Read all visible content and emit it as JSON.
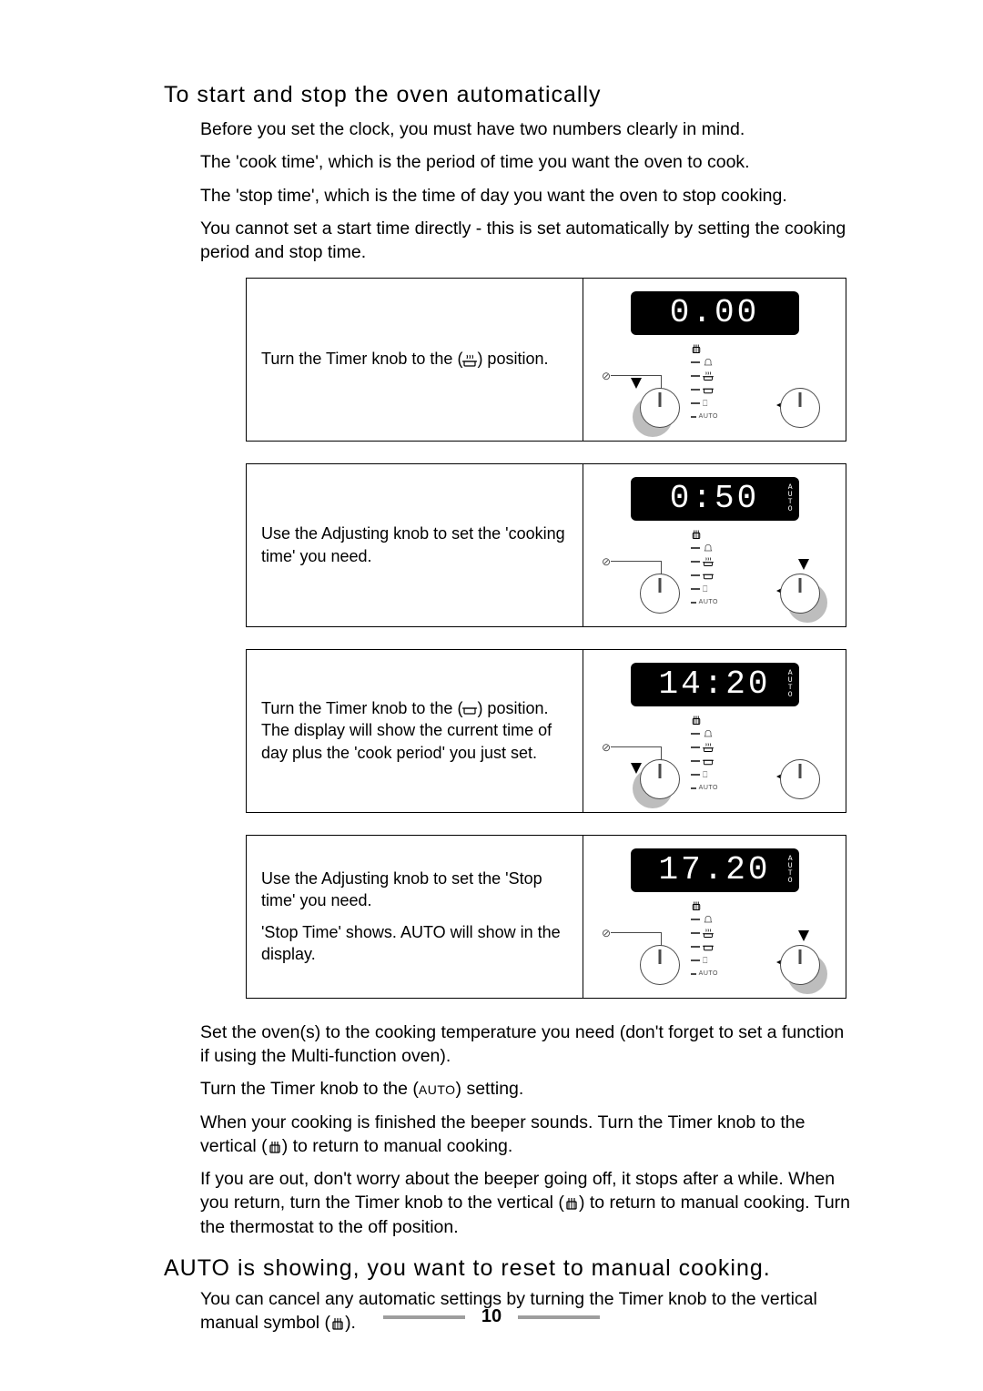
{
  "heading1": "To start and stop the oven automatically",
  "intro": [
    "Before you set the clock, you must have two numbers clearly in mind.",
    "The 'cook time', which is the period of time you want the oven to cook.",
    "The 'stop time', which is the time of day you want the oven to stop cooking.",
    "You cannot set a start time directly - this is set automatically by setting the cooking period and stop time."
  ],
  "steps": [
    {
      "text_pre": "Turn the Timer knob to the (",
      "text_post": ") position.",
      "icon": "pot-steam",
      "display": "0.00",
      "show_auto": false,
      "active_knob": "left",
      "pointer_icon_index": 1
    },
    {
      "text_pre": "Use the Adjusting knob to set the 'cooking time' you need.",
      "text_post": "",
      "icon": "",
      "display": "0:50",
      "show_auto": true,
      "active_knob": "right",
      "pointer_icon_index": null
    },
    {
      "text_pre": "Turn the Timer knob to the (",
      "text_post": ") position. The display will show the current time of day plus the 'cook period' you just set.",
      "icon": "pot-flat",
      "display": "14:20",
      "show_auto": true,
      "active_knob": "left",
      "pointer_icon_index": 2
    },
    {
      "text_pre": "Use the Adjusting knob to set the 'Stop time' you need.",
      "text_post": "",
      "text_extra": "'Stop Time' shows. AUTO will show in the display.",
      "icon": "",
      "display": "17.20",
      "show_auto": true,
      "active_knob": "right",
      "pointer_icon_index": null
    }
  ],
  "after": [
    {
      "pre": "Set the oven(s) to the cooking temperature you need (don't forget to set a function if using the Multi-function oven).",
      "icon": ""
    },
    {
      "pre": "Turn the Timer knob to the (",
      "smallcaps": "AUTO",
      "post": ") setting."
    },
    {
      "pre": "When your cooking is finished the beeper sounds. Turn the Timer knob to the vertical (",
      "icon": "manual",
      "post": ") to return to manual cooking."
    },
    {
      "pre": "If you are out, don't worry about the beeper going off, it stops after a while. When you return,  turn the Timer knob to the vertical (",
      "icon": "manual",
      "post": ") to return to manual cooking. Turn the thermostat to the off position."
    }
  ],
  "heading2": "AUTO is showing, you want to reset to manual cooking.",
  "reset_pre": "You can cancel any automatic settings by turning the Timer knob to the vertical manual symbol (",
  "reset_post": ").",
  "page_number": "10",
  "icon_labels": {
    "auto": "AUTO"
  },
  "colors": {
    "display_bg": "#000000",
    "display_fg": "#ffffff",
    "shadow": "#bdbdbd",
    "line": "#4a4a4a"
  }
}
